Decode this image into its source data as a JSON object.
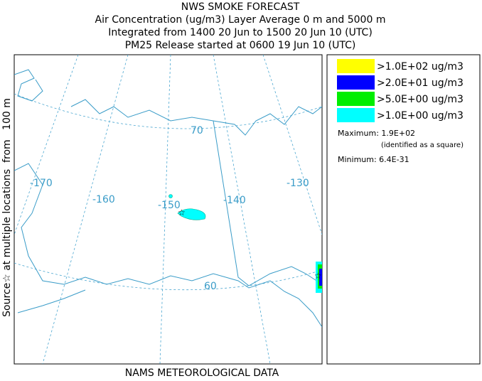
{
  "header": {
    "lines": [
      "NWS SMOKE FORECAST",
      "Air Concentration (ug/m3) Layer Average    0 m and  5000 m",
      "Integrated from 1400 20 Jun to 1500 20 Jun 10 (UTC)",
      "PM25 Release started at 0600 19 Jun 10 (UTC)"
    ]
  },
  "side_label": "Source☆ at multiple locations  from   100 m",
  "footer": "NAMS METEOROLOGICAL DATA",
  "legend": {
    "items": [
      {
        "color": "#ffff00",
        "label": ">1.0E+02 ug/m3"
      },
      {
        "color": "#0000ff",
        "label": ">2.0E+01 ug/m3"
      },
      {
        "color": "#00ee00",
        "label": ">5.0E+00 ug/m3"
      },
      {
        "color": "#00ffff",
        "label": ">1.0E+00 ug/m3"
      }
    ]
  },
  "stats": {
    "maximum": "Maximum: 1.9E+02",
    "maximum_note": "(identified as a square)",
    "minimum": "Minimum: 6.4E-31"
  },
  "map": {
    "labels": [
      "-170",
      "-160",
      "-150",
      "-140",
      "-130",
      "70",
      "60"
    ]
  }
}
